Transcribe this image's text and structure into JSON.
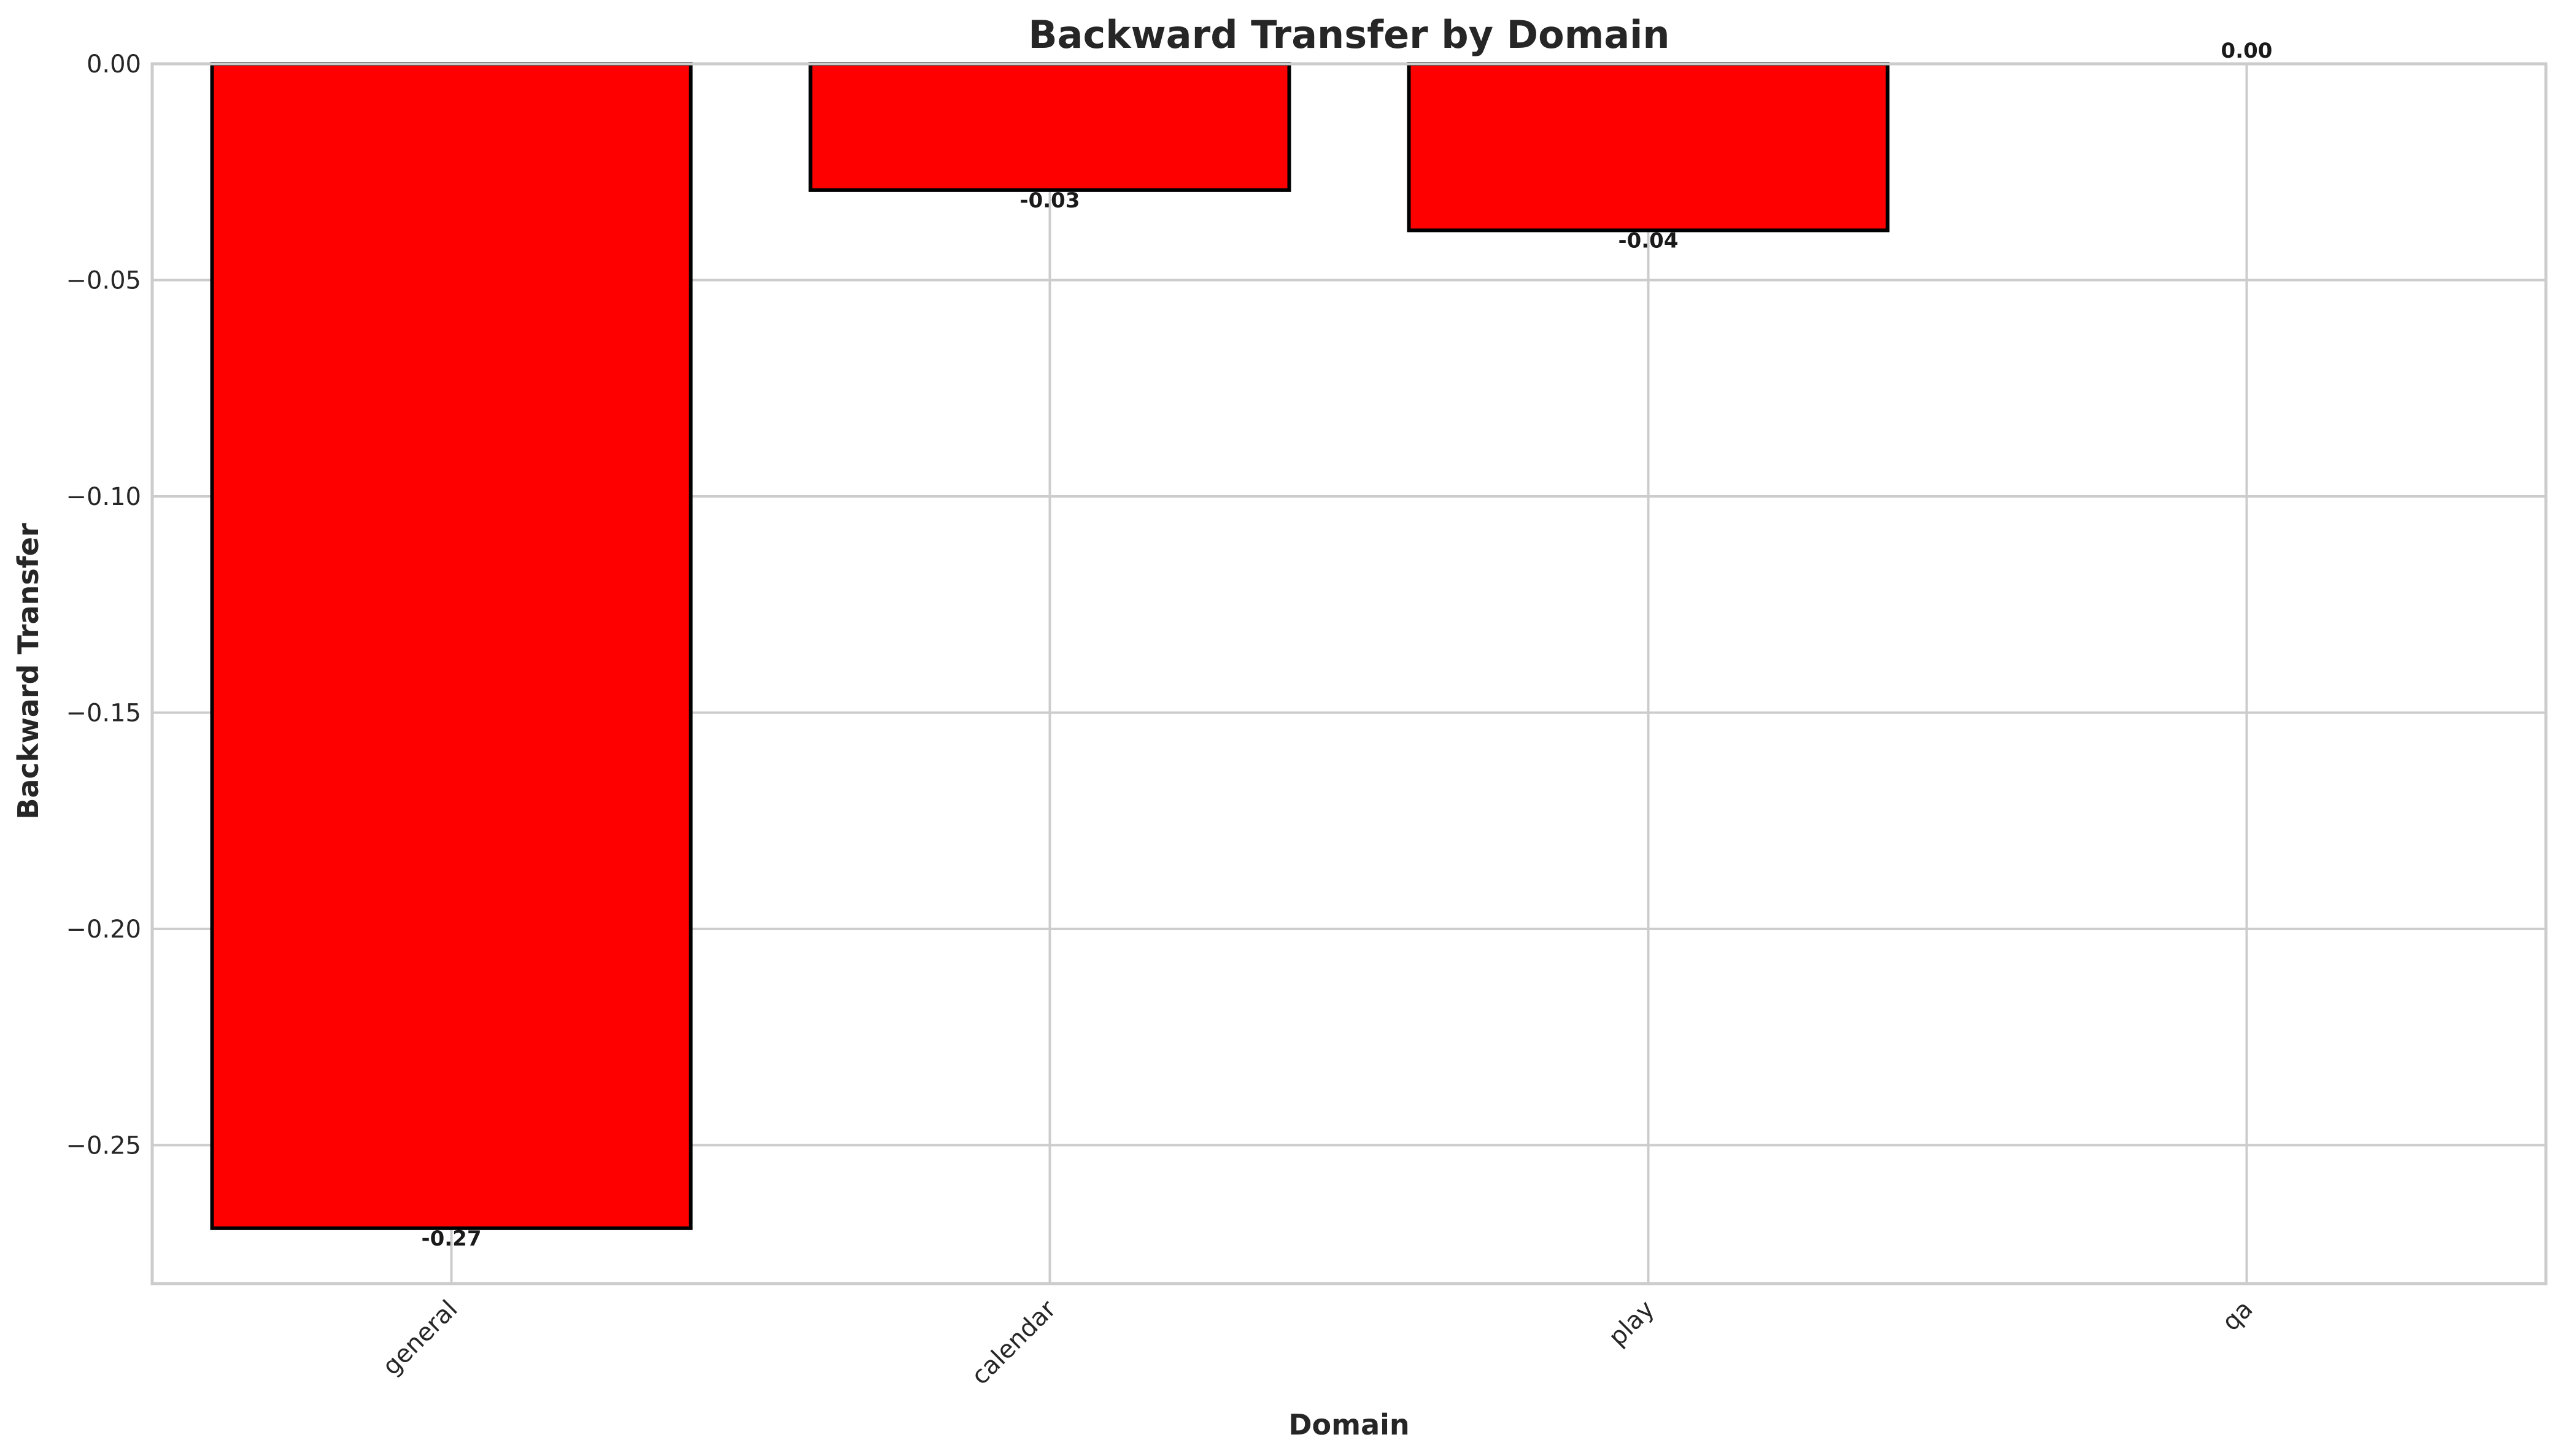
{
  "chart_data": {
    "type": "bar",
    "title": "Backward Transfer by Domain",
    "xlabel": "Domain",
    "ylabel": "Backward Transfer",
    "categories": [
      "general",
      "calendar",
      "play",
      "qa"
    ],
    "values": [
      -0.2692,
      -0.0292,
      -0.0385,
      0.0
    ],
    "data_labels": [
      "-0.27",
      "-0.03",
      "-0.04",
      "0.00"
    ],
    "ylim": [
      -0.282,
      0.0
    ],
    "yticks": [
      0.0,
      -0.05,
      -0.1,
      -0.15,
      -0.2,
      -0.25
    ],
    "ytick_labels": [
      "0.00",
      "−0.05",
      "−0.10",
      "−0.15",
      "−0.20",
      "−0.25"
    ],
    "grid": true,
    "legend": "none",
    "colors": {
      "bar_fill": "#ff0000",
      "bar_edge": "#000000",
      "grid": "#cccccc",
      "text": "#262626"
    }
  }
}
